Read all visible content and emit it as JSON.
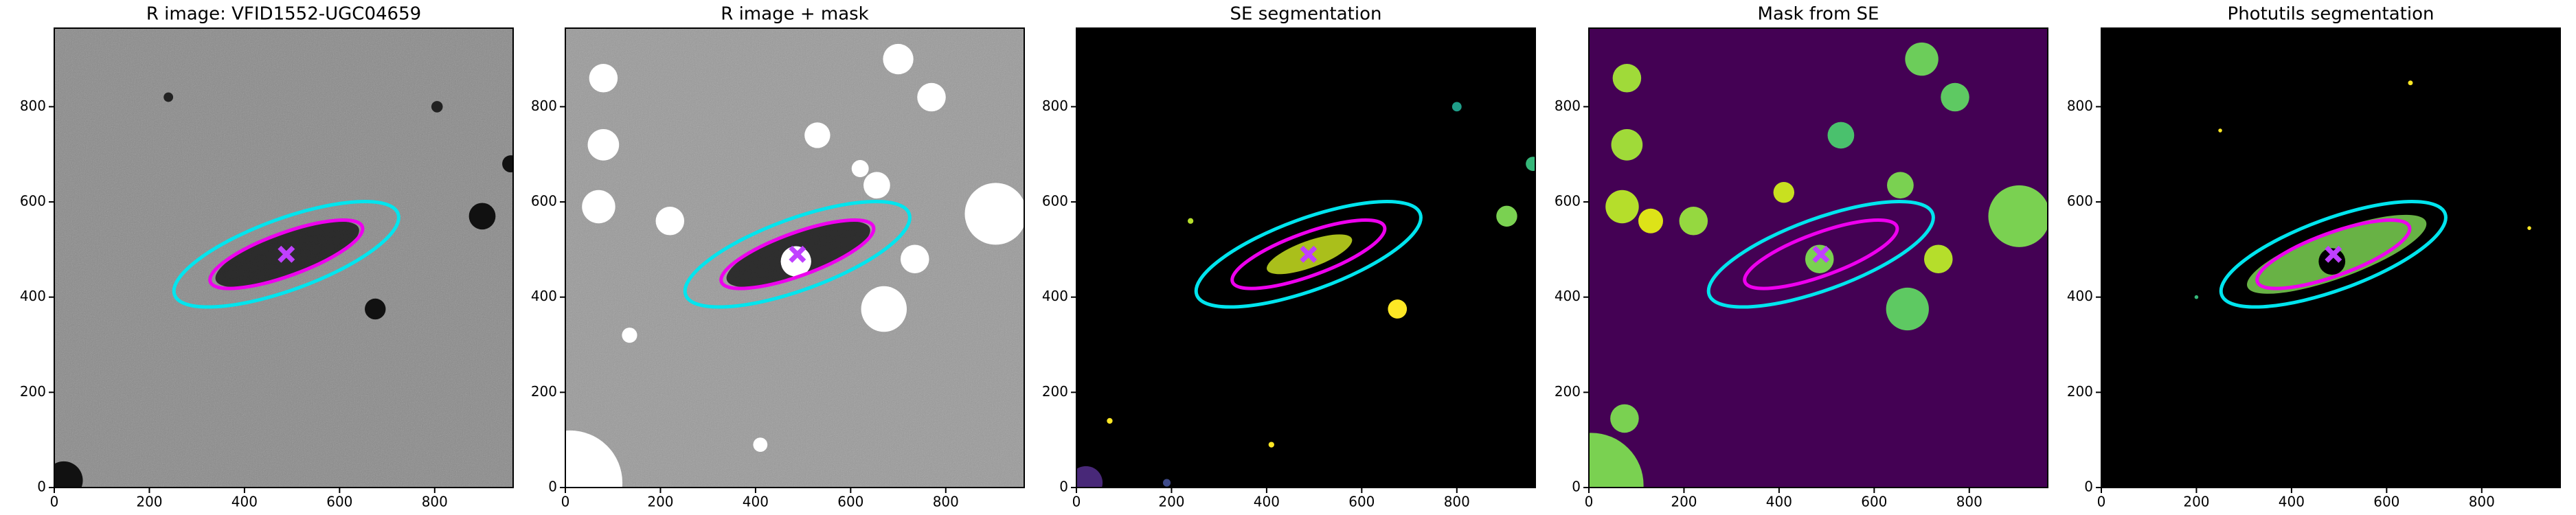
{
  "chart_data": [
    {
      "type": "image",
      "title": "R image: VFID1552-UGC04659",
      "background": "#8a8a8a",
      "noise": true,
      "xlim": [
        0,
        965
      ],
      "ylim": [
        0,
        965
      ],
      "xticks": [
        0,
        200,
        400,
        600,
        800
      ],
      "yticks": [
        0,
        200,
        400,
        600,
        800
      ],
      "source": {
        "x": 490,
        "y": 490,
        "a": 160,
        "b": 45,
        "angle": 20,
        "color": "#1a1a1a"
      },
      "regions": [
        {
          "x": 900,
          "y": 570,
          "r": 28,
          "color": "#111111"
        },
        {
          "x": 675,
          "y": 375,
          "r": 22,
          "color": "#111111"
        },
        {
          "x": 20,
          "y": 15,
          "r": 40,
          "color": "#111111"
        },
        {
          "x": 960,
          "y": 680,
          "r": 18,
          "color": "#111111"
        },
        {
          "x": 805,
          "y": 800,
          "r": 12,
          "color": "#222222"
        },
        {
          "x": 240,
          "y": 820,
          "r": 10,
          "color": "#222222"
        }
      ],
      "ellipses": [
        {
          "x": 488,
          "y": 490,
          "a": 250,
          "b": 75,
          "angle": 20,
          "color": "#00e5ee"
        },
        {
          "x": 488,
          "y": 490,
          "a": 170,
          "b": 45,
          "angle": 20,
          "color": "#ee00ee"
        }
      ],
      "center": {
        "x": 488,
        "y": 490,
        "color": "#c040ff"
      }
    },
    {
      "type": "image",
      "title": "R image + mask",
      "background": "#9a9a9a",
      "noise": true,
      "xlim": [
        0,
        965
      ],
      "ylim": [
        0,
        965
      ],
      "xticks": [
        0,
        200,
        400,
        600,
        800
      ],
      "yticks": [
        0,
        200,
        400,
        600,
        800
      ],
      "source": {
        "x": 490,
        "y": 490,
        "a": 160,
        "b": 45,
        "angle": 20,
        "color": "#1a1a1a"
      },
      "regions": [
        {
          "x": 10,
          "y": 10,
          "r": 110,
          "color": "#ffffff"
        },
        {
          "x": 670,
          "y": 375,
          "r": 48,
          "color": "#ffffff"
        },
        {
          "x": 905,
          "y": 575,
          "r": 65,
          "color": "#ffffff"
        },
        {
          "x": 70,
          "y": 590,
          "r": 35,
          "color": "#ffffff"
        },
        {
          "x": 485,
          "y": 475,
          "r": 32,
          "color": "#ffffff"
        },
        {
          "x": 700,
          "y": 900,
          "r": 32,
          "color": "#ffffff"
        },
        {
          "x": 80,
          "y": 720,
          "r": 33,
          "color": "#ffffff"
        },
        {
          "x": 220,
          "y": 560,
          "r": 30,
          "color": "#ffffff"
        },
        {
          "x": 770,
          "y": 820,
          "r": 30,
          "color": "#ffffff"
        },
        {
          "x": 530,
          "y": 740,
          "r": 27,
          "color": "#ffffff"
        },
        {
          "x": 735,
          "y": 480,
          "r": 30,
          "color": "#ffffff"
        },
        {
          "x": 655,
          "y": 635,
          "r": 28,
          "color": "#ffffff"
        },
        {
          "x": 80,
          "y": 860,
          "r": 30,
          "color": "#ffffff"
        },
        {
          "x": 620,
          "y": 670,
          "r": 18,
          "color": "#ffffff"
        },
        {
          "x": 135,
          "y": 320,
          "r": 16,
          "color": "#ffffff"
        },
        {
          "x": 410,
          "y": 90,
          "r": 15,
          "color": "#ffffff"
        }
      ],
      "ellipses": [
        {
          "x": 488,
          "y": 490,
          "a": 250,
          "b": 75,
          "angle": 20,
          "color": "#00e5ee"
        },
        {
          "x": 488,
          "y": 490,
          "a": 170,
          "b": 45,
          "angle": 20,
          "color": "#ee00ee"
        }
      ],
      "center": {
        "x": 488,
        "y": 490,
        "color": "#c040ff"
      }
    },
    {
      "type": "image",
      "title": "SE segmentation",
      "background": "#000000",
      "noise": false,
      "xlim": [
        0,
        965
      ],
      "ylim": [
        0,
        965
      ],
      "xticks": [
        0,
        200,
        400,
        600,
        800
      ],
      "yticks": [
        0,
        200,
        400,
        600,
        800
      ],
      "source": {
        "x": 490,
        "y": 490,
        "a": 95,
        "b": 28,
        "angle": 20,
        "color": "#c8e020"
      },
      "regions": [
        {
          "x": 905,
          "y": 570,
          "r": 22,
          "color": "#7ad151"
        },
        {
          "x": 675,
          "y": 375,
          "r": 20,
          "color": "#fde725"
        },
        {
          "x": 20,
          "y": 10,
          "r": 35,
          "color": "#482878"
        },
        {
          "x": 960,
          "y": 680,
          "r": 15,
          "color": "#35b779"
        },
        {
          "x": 800,
          "y": 800,
          "r": 10,
          "color": "#1f9e89"
        },
        {
          "x": 410,
          "y": 90,
          "r": 6,
          "color": "#fde725"
        },
        {
          "x": 190,
          "y": 10,
          "r": 8,
          "color": "#3e4a89"
        },
        {
          "x": 70,
          "y": 140,
          "r": 6,
          "color": "#fde725"
        },
        {
          "x": 240,
          "y": 560,
          "r": 6,
          "color": "#b5de2b"
        }
      ],
      "ellipses": [
        {
          "x": 488,
          "y": 490,
          "a": 250,
          "b": 75,
          "angle": 20,
          "color": "#00e5ee"
        },
        {
          "x": 488,
          "y": 490,
          "a": 170,
          "b": 45,
          "angle": 20,
          "color": "#ee00ee"
        }
      ],
      "center": {
        "x": 488,
        "y": 490,
        "color": "#c040ff"
      }
    },
    {
      "type": "image",
      "title": "Mask from SE",
      "background": "#440154",
      "noise": false,
      "xlim": [
        0,
        965
      ],
      "ylim": [
        0,
        965
      ],
      "xticks": [
        0,
        200,
        400,
        600,
        800
      ],
      "yticks": [
        0,
        200,
        400,
        600,
        800
      ],
      "source": {
        "x": 490,
        "y": 490,
        "a": 0,
        "b": 0,
        "angle": 20,
        "color": "#440154"
      },
      "regions": [
        {
          "x": 5,
          "y": 5,
          "r": 110,
          "color": "#7ad151"
        },
        {
          "x": 670,
          "y": 375,
          "r": 45,
          "color": "#5ec962"
        },
        {
          "x": 905,
          "y": 570,
          "r": 65,
          "color": "#7ad151"
        },
        {
          "x": 70,
          "y": 590,
          "r": 35,
          "color": "#b5de2b"
        },
        {
          "x": 485,
          "y": 480,
          "r": 30,
          "color": "#7ad151"
        },
        {
          "x": 700,
          "y": 900,
          "r": 35,
          "color": "#6ccd5a"
        },
        {
          "x": 80,
          "y": 720,
          "r": 33,
          "color": "#a0da39"
        },
        {
          "x": 220,
          "y": 560,
          "r": 30,
          "color": "#95d840"
        },
        {
          "x": 770,
          "y": 820,
          "r": 30,
          "color": "#5ec962"
        },
        {
          "x": 530,
          "y": 740,
          "r": 28,
          "color": "#4ac16d"
        },
        {
          "x": 735,
          "y": 480,
          "r": 30,
          "color": "#b5de2b"
        },
        {
          "x": 655,
          "y": 635,
          "r": 28,
          "color": "#7ad151"
        },
        {
          "x": 80,
          "y": 860,
          "r": 30,
          "color": "#a0da39"
        },
        {
          "x": 410,
          "y": 620,
          "r": 22,
          "color": "#c8e020"
        },
        {
          "x": 130,
          "y": 560,
          "r": 26,
          "color": "#dde318"
        },
        {
          "x": 75,
          "y": 145,
          "r": 30,
          "color": "#7ad151"
        }
      ],
      "ellipses": [
        {
          "x": 488,
          "y": 490,
          "a": 250,
          "b": 75,
          "angle": 20,
          "color": "#00e5ee"
        },
        {
          "x": 488,
          "y": 490,
          "a": 170,
          "b": 45,
          "angle": 20,
          "color": "#ee00ee"
        }
      ],
      "center": {
        "x": 488,
        "y": 490,
        "color": "#c040ff"
      }
    },
    {
      "type": "image",
      "title": "Photutils segmentation",
      "background": "#000000",
      "noise": false,
      "xlim": [
        0,
        965
      ],
      "ylim": [
        0,
        965
      ],
      "xticks": [
        0,
        200,
        400,
        600,
        800
      ],
      "yticks": [
        0,
        200,
        400,
        600,
        800
      ],
      "source": {
        "x": 495,
        "y": 490,
        "a": 200,
        "b": 50,
        "angle": 20,
        "color": "#7ad151"
      },
      "regions": [
        {
          "x": 485,
          "y": 475,
          "r": 28,
          "color": "#000000"
        },
        {
          "x": 650,
          "y": 850,
          "r": 5,
          "color": "#fde725"
        },
        {
          "x": 250,
          "y": 750,
          "r": 4,
          "color": "#fde725"
        },
        {
          "x": 900,
          "y": 545,
          "r": 4,
          "color": "#fde725"
        },
        {
          "x": 200,
          "y": 400,
          "r": 4,
          "color": "#35b779"
        }
      ],
      "ellipses": [
        {
          "x": 488,
          "y": 490,
          "a": 250,
          "b": 75,
          "angle": 20,
          "color": "#00e5ee"
        },
        {
          "x": 488,
          "y": 490,
          "a": 170,
          "b": 45,
          "angle": 20,
          "color": "#ee00ee"
        }
      ],
      "center": {
        "x": 488,
        "y": 490,
        "color": "#c040ff"
      }
    }
  ]
}
